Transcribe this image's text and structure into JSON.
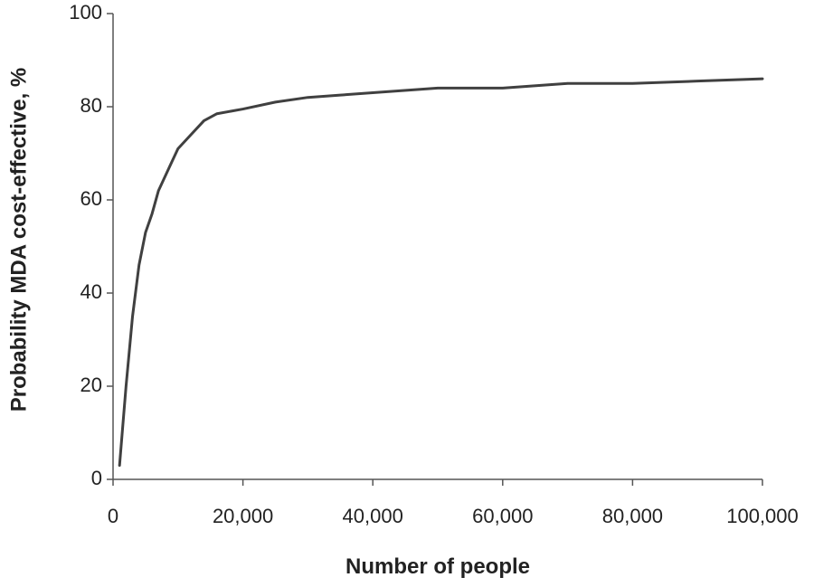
{
  "chart_data": {
    "type": "line",
    "xlabel": "Number of people",
    "ylabel": "Probability  MDA cost-effective, %",
    "x": [
      1000,
      2000,
      3000,
      4000,
      5000,
      6000,
      7000,
      8000,
      9000,
      10000,
      12000,
      14000,
      16000,
      20000,
      25000,
      30000,
      35000,
      40000,
      50000,
      60000,
      70000,
      80000,
      90000,
      100000
    ],
    "values": [
      3,
      20,
      35,
      46,
      53,
      57,
      62,
      65,
      68,
      71,
      74,
      77,
      78.5,
      79.5,
      81,
      82,
      82.5,
      83,
      84,
      84,
      85,
      85,
      85.5,
      86
    ],
    "color": "#404040",
    "xlim": [
      0,
      100000
    ],
    "xticks": [
      0,
      {
        "value": 20000,
        "label": "20,000"
      },
      {
        "value": 40000,
        "label": "40,000"
      },
      {
        "value": 60000,
        "label": "60,000"
      },
      {
        "value": 80000,
        "label": "80,000"
      },
      {
        "value": 100000,
        "label": "100,000"
      }
    ],
    "ylim": [
      0,
      100
    ],
    "yticks": [
      0,
      20,
      40,
      60,
      80,
      100
    ],
    "grid": false
  }
}
